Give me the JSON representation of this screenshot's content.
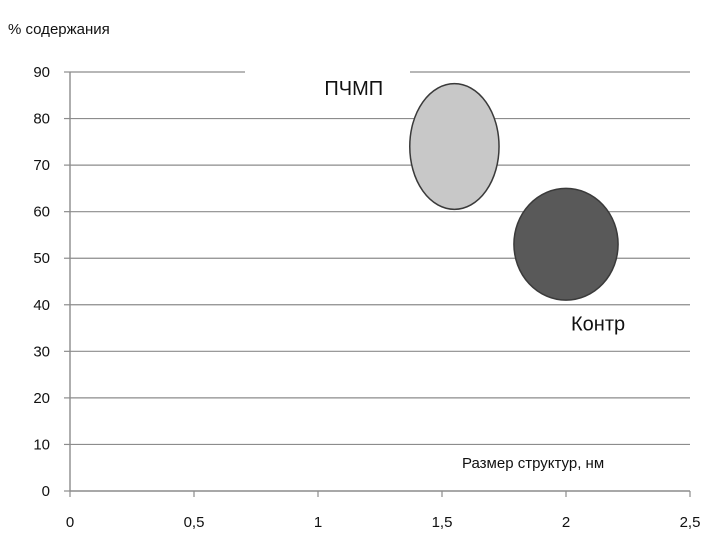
{
  "chart_data": {
    "type": "bubble",
    "ylabel": "% содержания",
    "xlabel": "Размер структур, нм",
    "xlim": [
      0,
      2.5
    ],
    "ylim": [
      0,
      90
    ],
    "x_ticks": [
      "0",
      "0,5",
      "1",
      "1,5",
      "2",
      "2,5"
    ],
    "x_tick_values": [
      0,
      0.5,
      1,
      1.5,
      2,
      2.5
    ],
    "y_ticks": [
      "0",
      "10",
      "20",
      "30",
      "40",
      "50",
      "60",
      "70",
      "80",
      "90"
    ],
    "y_tick_values": [
      0,
      10,
      20,
      30,
      40,
      50,
      60,
      70,
      80,
      90
    ],
    "grid": "horizontal",
    "series": [
      {
        "name": "ПЧМП",
        "x": 1.55,
        "y": 74,
        "size_x": 0.36,
        "size_y": 27,
        "color": "#c8c8c8"
      },
      {
        "name": "Контр",
        "x": 2.0,
        "y": 53,
        "size_x": 0.42,
        "size_y": 24,
        "color": "#595959"
      }
    ]
  }
}
